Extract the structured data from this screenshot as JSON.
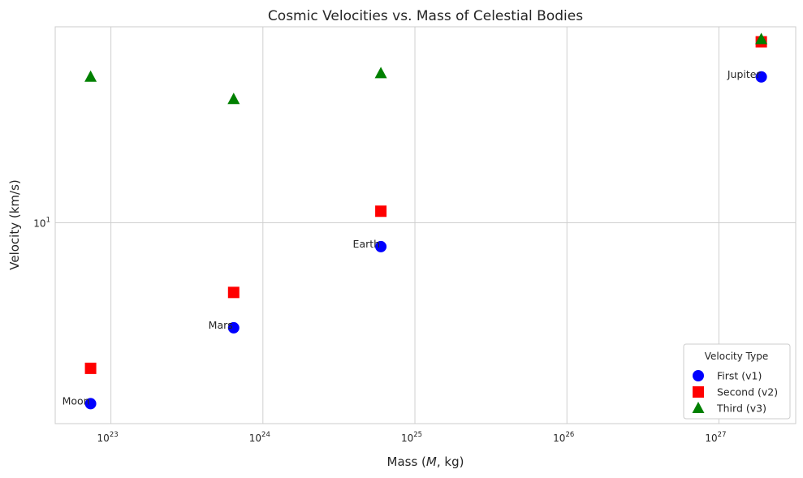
{
  "chart_data": {
    "type": "scatter",
    "title": "Cosmic Velocities vs. Mass of Celestial Bodies",
    "xlabel_prefix": "Mass (",
    "xlabel_var": "M",
    "xlabel_suffix": ", kg)",
    "ylabel": "Velocity (km/s)",
    "xscale": "log",
    "yscale": "log",
    "xlim": [
      4.3e+22,
      3.2e+27
    ],
    "ylim": [
      1.38,
      69
    ],
    "xticks": [
      {
        "value": 1e+23,
        "base": "10",
        "exp": "23"
      },
      {
        "value": 1e+24,
        "base": "10",
        "exp": "24"
      },
      {
        "value": 1e+25,
        "base": "10",
        "exp": "25"
      },
      {
        "value": 1e+26,
        "base": "10",
        "exp": "26"
      },
      {
        "value": 1e+27,
        "base": "10",
        "exp": "27"
      }
    ],
    "yticks": [
      {
        "value": 10,
        "base": "10",
        "exp": "1"
      }
    ],
    "grid": true,
    "bodies": [
      "Moon",
      "Mars",
      "Earth",
      "Jupiter"
    ],
    "x": [
      7.35e+22,
      6.42e+23,
      5.97e+24,
      1.9e+27
    ],
    "series": [
      {
        "name": "First (v1)",
        "marker": "circle",
        "color": "#0000ff",
        "values": [
          1.68,
          3.55,
          7.9,
          42.1
        ]
      },
      {
        "name": "Second (v2)",
        "marker": "square",
        "color": "#ff0000",
        "values": [
          2.38,
          5.03,
          11.2,
          59.5
        ]
      },
      {
        "name": "Third (v3)",
        "marker": "triangle",
        "color": "#008000",
        "values": [
          42.1,
          33.8,
          43.6,
          61.0
        ]
      }
    ],
    "legend": {
      "title": "Velocity Type",
      "placement": "lower-right"
    }
  }
}
